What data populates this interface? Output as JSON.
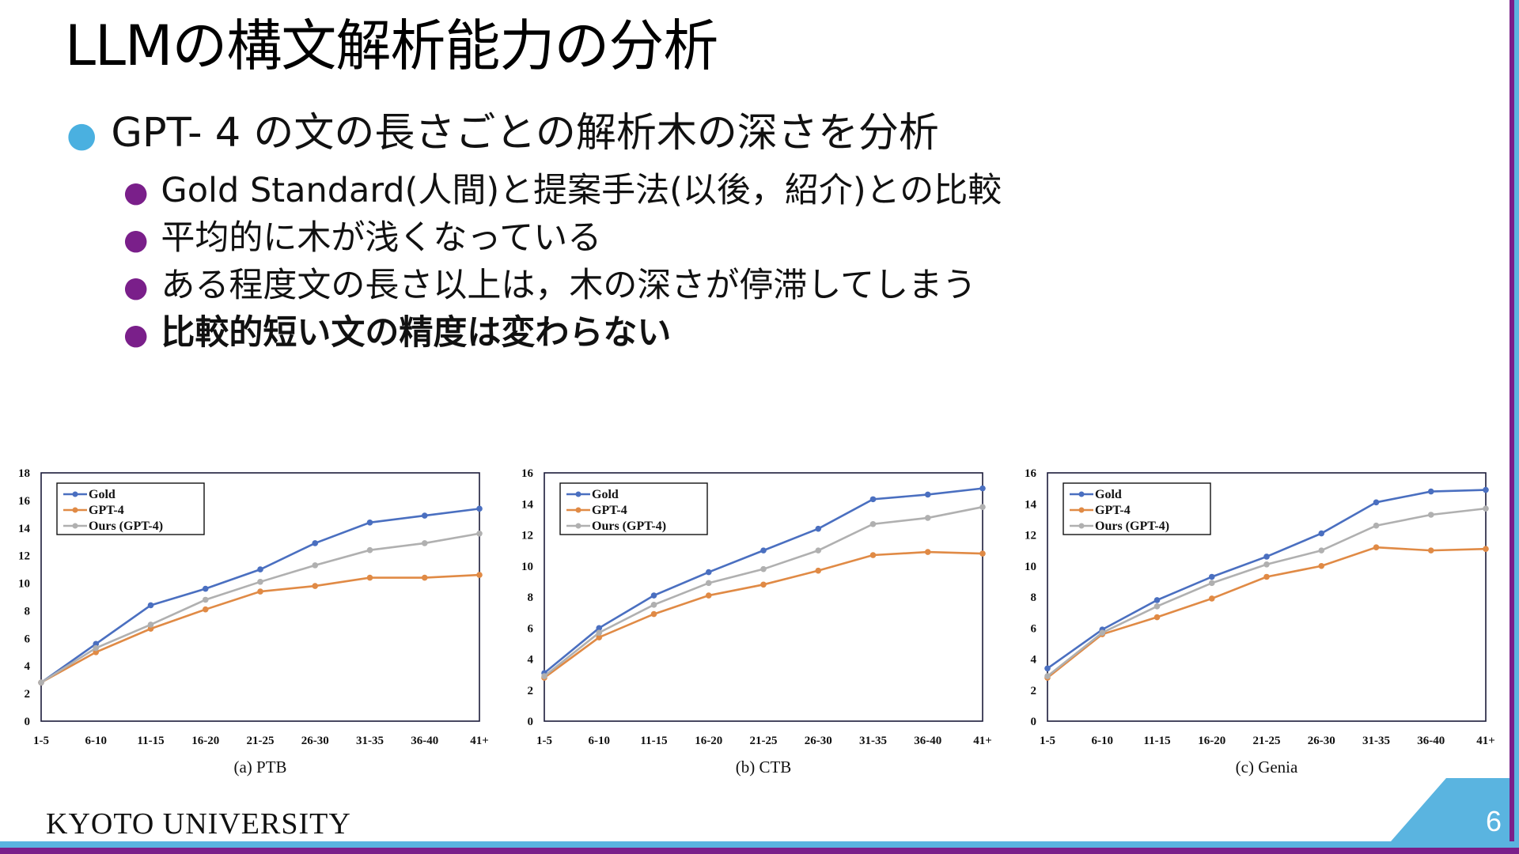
{
  "slide": {
    "title": "LLMの構文解析能力の分析",
    "bullet_main": "GPT- 4 の文の長さごとの解析木の深さを分析",
    "sub_bullets": [
      "Gold Standard(人間)と提案手法(以後，紹介)との比較",
      "平均的に木が浅くなっている",
      "ある程度文の長さ以上は，木の深さが停滞してしまう",
      "比較的短い文の精度は変わらない"
    ],
    "footer": "KYOTO UNIVERSITY",
    "page_number": "6"
  },
  "colors": {
    "gold": "#4a6fc0",
    "gpt4": "#e08a45",
    "ours": "#b0b0b0",
    "accent_blue": "#5ab4e0",
    "accent_purple": "#7a1f8a"
  },
  "chart_data": [
    {
      "type": "line",
      "caption": "(a) PTB",
      "categories": [
        "1-5",
        "6-10",
        "11-15",
        "16-20",
        "21-25",
        "26-30",
        "31-35",
        "36-40",
        "41+"
      ],
      "ylim": [
        0,
        18
      ],
      "yticks": [
        0,
        2,
        4,
        6,
        8,
        10,
        12,
        14,
        16,
        18
      ],
      "legend_position": "top-left",
      "series": [
        {
          "name": "Gold",
          "values": [
            2.8,
            5.6,
            8.4,
            9.6,
            11.0,
            12.9,
            14.4,
            14.9,
            15.4
          ]
        },
        {
          "name": "GPT-4",
          "values": [
            2.8,
            5.0,
            6.7,
            8.1,
            9.4,
            9.8,
            10.4,
            10.4,
            10.6
          ]
        },
        {
          "name": "Ours (GPT-4)",
          "values": [
            2.8,
            5.3,
            7.0,
            8.8,
            10.1,
            11.3,
            12.4,
            12.9,
            13.6
          ]
        }
      ]
    },
    {
      "type": "line",
      "caption": "(b) CTB",
      "categories": [
        "1-5",
        "6-10",
        "11-15",
        "16-20",
        "21-25",
        "26-30",
        "31-35",
        "36-40",
        "41+"
      ],
      "ylim": [
        0,
        16
      ],
      "yticks": [
        0,
        2,
        4,
        6,
        8,
        10,
        12,
        14,
        16
      ],
      "legend_position": "top-left",
      "series": [
        {
          "name": "Gold",
          "values": [
            3.1,
            6.0,
            8.1,
            9.6,
            11.0,
            12.4,
            14.3,
            14.6,
            15.0
          ]
        },
        {
          "name": "GPT-4",
          "values": [
            2.8,
            5.4,
            6.9,
            8.1,
            8.8,
            9.7,
            10.7,
            10.9,
            10.8
          ]
        },
        {
          "name": "Ours (GPT-4)",
          "values": [
            2.9,
            5.7,
            7.5,
            8.9,
            9.8,
            11.0,
            12.7,
            13.1,
            13.8
          ]
        }
      ]
    },
    {
      "type": "line",
      "caption": "(c) Genia",
      "categories": [
        "1-5",
        "6-10",
        "11-15",
        "16-20",
        "21-25",
        "26-30",
        "31-35",
        "36-40",
        "41+"
      ],
      "ylim": [
        0,
        16
      ],
      "yticks": [
        0,
        2,
        4,
        6,
        8,
        10,
        12,
        14,
        16
      ],
      "legend_position": "top-left",
      "series": [
        {
          "name": "Gold",
          "values": [
            3.4,
            5.9,
            7.8,
            9.3,
            10.6,
            12.1,
            14.1,
            14.8,
            14.9
          ]
        },
        {
          "name": "GPT-4",
          "values": [
            2.8,
            5.6,
            6.7,
            7.9,
            9.3,
            10.0,
            11.2,
            11.0,
            11.1
          ]
        },
        {
          "name": "Ours (GPT-4)",
          "values": [
            2.9,
            5.7,
            7.4,
            8.9,
            10.1,
            11.0,
            12.6,
            13.3,
            13.7
          ]
        }
      ]
    }
  ]
}
